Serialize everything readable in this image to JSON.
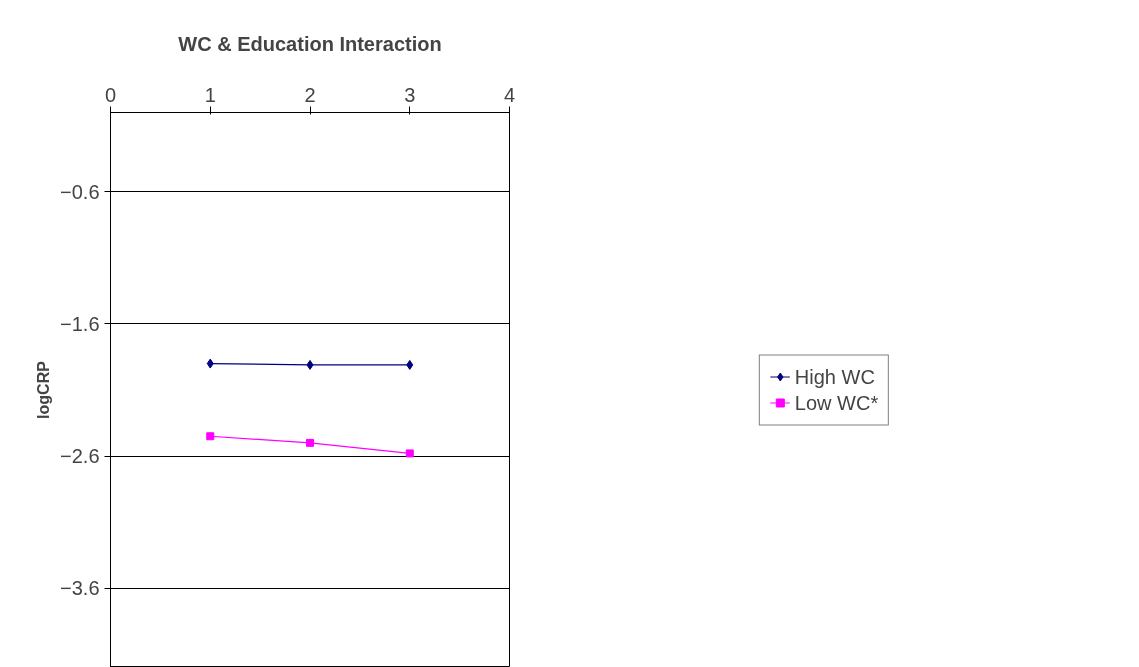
{
  "chart_data": {
    "type": "line",
    "title": "WC & Education Interaction",
    "ylabel": "logCRP",
    "x": [
      1,
      2,
      3
    ],
    "series": [
      {
        "name": "High WC",
        "color": "#000080",
        "marker": "diamond",
        "values": [
          -1.9,
          -1.91,
          -1.91
        ]
      },
      {
        "name": "Low WC*",
        "color": "#ff00ff",
        "marker": "square",
        "values": [
          -2.45,
          -2.5,
          -2.58
        ]
      }
    ],
    "xlim": [
      0,
      4
    ],
    "xticks": [
      0,
      1,
      2,
      3,
      4
    ],
    "ylim": [
      -4.2,
      0
    ],
    "yticks": [
      -0.6,
      -1.6,
      -2.6,
      -3.6
    ],
    "grid": "y",
    "legend": "right",
    "line_style": "solid"
  }
}
